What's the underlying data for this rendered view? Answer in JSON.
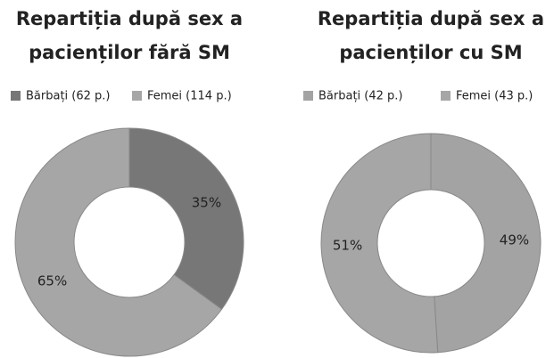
{
  "chart_data": [
    {
      "type": "donut",
      "title": [
        "Repartiția după sex a",
        "pacienților fără   SM"
      ],
      "categories": [
        "Bărbați (62 p.)",
        "Femei (114 p.)"
      ],
      "values": [
        35,
        65
      ],
      "value_labels": [
        "35%",
        "65%"
      ],
      "colors": [
        "#777777",
        "#a6a6a6"
      ]
    },
    {
      "type": "donut",
      "title": [
        "Repartiția după sex a",
        "pacienților cu  SM"
      ],
      "categories": [
        "Bărbați (42 p.)",
        "Femei (43 p.)"
      ],
      "values": [
        49,
        51
      ],
      "value_labels": [
        "49%",
        "51%"
      ],
      "colors": [
        "#a3a3a3",
        "#a6a6a6"
      ]
    }
  ]
}
